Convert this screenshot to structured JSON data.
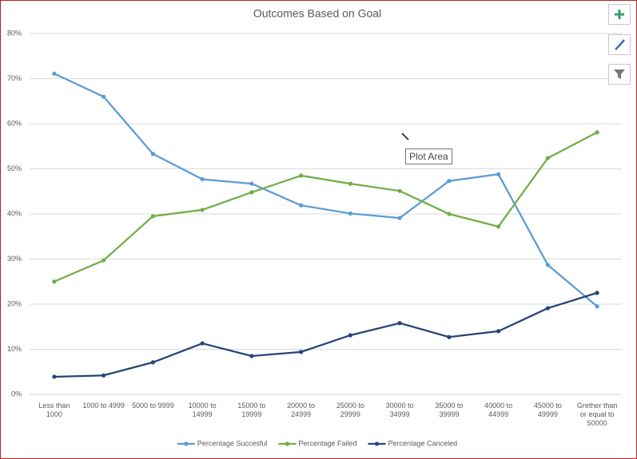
{
  "chart_data": {
    "type": "line",
    "title": "Outcomes Based on Goal",
    "categories": [
      "Less than 1000",
      "1000 to 4999",
      "5000 to 9999",
      "10000 to 14999",
      "15000 to 19999",
      "20000 to 24999",
      "25000 to 29999",
      "30000 to 34999",
      "35000 to 39999",
      "40000 to 44999",
      "45000 to 49999",
      "Grether than or equal to 50000"
    ],
    "series": [
      {
        "name": "Percentage Succesful",
        "color": "#5b9bd5",
        "values": [
          71.1,
          66.0,
          53.3,
          47.7,
          46.7,
          41.9,
          40.1,
          39.1,
          47.3,
          48.8,
          28.7,
          19.5
        ]
      },
      {
        "name": "Percentage Failed",
        "color": "#70ad47",
        "values": [
          25.0,
          29.7,
          39.5,
          40.9,
          44.8,
          48.5,
          46.7,
          45.1,
          40.0,
          37.2,
          52.4,
          58.1
        ]
      },
      {
        "name": "Percentage Canceled",
        "color": "#264478",
        "values": [
          3.9,
          4.2,
          7.1,
          11.3,
          8.5,
          9.4,
          13.1,
          15.8,
          12.7,
          14.0,
          19.1,
          22.5
        ]
      }
    ],
    "ylim": [
      0,
      80
    ],
    "yticks": [
      {
        "value": 0,
        "label": "0%"
      },
      {
        "value": 10,
        "label": "10%"
      },
      {
        "value": 20,
        "label": "20%"
      },
      {
        "value": 30,
        "label": "30%"
      },
      {
        "value": 40,
        "label": "40%"
      },
      {
        "value": 50,
        "label": "50%"
      },
      {
        "value": 60,
        "label": "60%"
      },
      {
        "value": 70,
        "label": "70%"
      },
      {
        "value": 80,
        "label": "80%"
      }
    ],
    "grid": true,
    "legend": "bottom",
    "tooltip": "Plot Area"
  }
}
